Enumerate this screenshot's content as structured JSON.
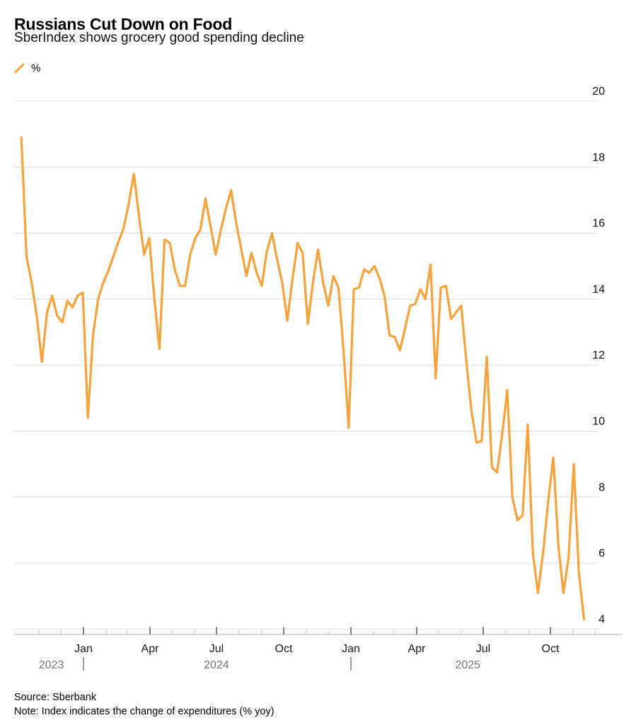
{
  "header": {
    "title": "Russians Cut Down on Food",
    "subtitle": "SberIndex shows grocery good spending decline"
  },
  "legend": {
    "label": "%"
  },
  "footer": {
    "source": "Source: Sberbank",
    "note": "Note: Index indicates the change of expenditures (% yoy)"
  },
  "colors": {
    "line": "#F8A23C",
    "grid": "#DADADA",
    "axis_line": "#BDBDBD",
    "tick_minor": "#C4C4C4",
    "tick_major": "#4A4A4A",
    "year_divider": "#6E6E6E",
    "year_text": "#767676",
    "month_text": "#1A1A1A",
    "y_label_text": "#111111"
  },
  "chart_data": {
    "type": "line",
    "title": "Russians Cut Down on Food",
    "subtitle": "SberIndex shows grocery good spending decline",
    "series_name": "%",
    "unit": "% yoy",
    "ylim": [
      4,
      20
    ],
    "y_ticks": [
      20,
      18,
      16,
      14,
      12,
      10,
      8,
      6,
      4
    ],
    "grid": true,
    "y_axis_side": "right",
    "legend_position": "top-left",
    "x_ticks": [
      {
        "date": "2023-11-01",
        "label": ""
      },
      {
        "date": "2023-12-01",
        "label": ""
      },
      {
        "date": "2024-01-01",
        "label": "Jan"
      },
      {
        "date": "2024-02-01",
        "label": ""
      },
      {
        "date": "2024-03-01",
        "label": ""
      },
      {
        "date": "2024-04-01",
        "label": "Apr"
      },
      {
        "date": "2024-05-01",
        "label": ""
      },
      {
        "date": "2024-06-01",
        "label": ""
      },
      {
        "date": "2024-07-01",
        "label": "Jul"
      },
      {
        "date": "2024-08-01",
        "label": ""
      },
      {
        "date": "2024-09-01",
        "label": ""
      },
      {
        "date": "2024-10-01",
        "label": "Oct"
      },
      {
        "date": "2024-11-01",
        "label": ""
      },
      {
        "date": "2024-12-01",
        "label": ""
      },
      {
        "date": "2025-01-01",
        "label": "Jan"
      },
      {
        "date": "2025-02-01",
        "label": ""
      },
      {
        "date": "2025-03-01",
        "label": ""
      },
      {
        "date": "2025-04-01",
        "label": "Apr"
      },
      {
        "date": "2025-05-01",
        "label": ""
      },
      {
        "date": "2025-06-01",
        "label": ""
      },
      {
        "date": "2025-07-01",
        "label": "Jul"
      },
      {
        "date": "2025-08-01",
        "label": ""
      },
      {
        "date": "2025-09-01",
        "label": ""
      },
      {
        "date": "2025-10-01",
        "label": "Oct"
      },
      {
        "date": "2025-11-01",
        "label": ""
      },
      {
        "date": "2025-12-01",
        "label": ""
      }
    ],
    "years": [
      {
        "label": "2023",
        "center_date": "2023-11-18"
      },
      {
        "label": "2024",
        "center_date": "2024-07-01"
      },
      {
        "label": "2025",
        "center_date": "2025-06-10"
      }
    ],
    "year_dividers": [
      "2024-01-01",
      "2025-01-01"
    ],
    "x": [
      "2023-10-08",
      "2023-10-15",
      "2023-10-22",
      "2023-10-29",
      "2023-11-05",
      "2023-11-12",
      "2023-11-19",
      "2023-11-26",
      "2023-12-03",
      "2023-12-10",
      "2023-12-17",
      "2023-12-24",
      "2023-12-31",
      "2024-01-07",
      "2024-01-14",
      "2024-01-21",
      "2024-01-28",
      "2024-02-04",
      "2024-02-11",
      "2024-02-18",
      "2024-02-25",
      "2024-03-03",
      "2024-03-10",
      "2024-03-17",
      "2024-03-24",
      "2024-03-31",
      "2024-04-07",
      "2024-04-14",
      "2024-04-21",
      "2024-04-28",
      "2024-05-05",
      "2024-05-12",
      "2024-05-19",
      "2024-05-26",
      "2024-06-02",
      "2024-06-09",
      "2024-06-16",
      "2024-06-23",
      "2024-06-30",
      "2024-07-07",
      "2024-07-14",
      "2024-07-21",
      "2024-07-28",
      "2024-08-04",
      "2024-08-11",
      "2024-08-18",
      "2024-08-25",
      "2024-09-01",
      "2024-09-08",
      "2024-09-15",
      "2024-09-22",
      "2024-09-29",
      "2024-10-06",
      "2024-10-13",
      "2024-10-20",
      "2024-10-27",
      "2024-11-03",
      "2024-11-10",
      "2024-11-17",
      "2024-11-24",
      "2024-12-01",
      "2024-12-08",
      "2024-12-15",
      "2024-12-22",
      "2024-12-29",
      "2025-01-05",
      "2025-01-12",
      "2025-01-19",
      "2025-01-26",
      "2025-02-02",
      "2025-02-09",
      "2025-02-16",
      "2025-02-23",
      "2025-03-02",
      "2025-03-09",
      "2025-03-16",
      "2025-03-23",
      "2025-03-30",
      "2025-04-06",
      "2025-04-13",
      "2025-04-20",
      "2025-04-27",
      "2025-05-04",
      "2025-05-11",
      "2025-05-18",
      "2025-05-25",
      "2025-06-01",
      "2025-06-08",
      "2025-06-15",
      "2025-06-22",
      "2025-06-29",
      "2025-07-06",
      "2025-07-13",
      "2025-07-20",
      "2025-07-27",
      "2025-08-03",
      "2025-08-10",
      "2025-08-17",
      "2025-08-24",
      "2025-08-31",
      "2025-09-07",
      "2025-09-14",
      "2025-09-21",
      "2025-09-28",
      "2025-10-05",
      "2025-10-12",
      "2025-10-19",
      "2025-10-26",
      "2025-11-02",
      "2025-11-09",
      "2025-11-16"
    ],
    "y": [
      18.9,
      15.3,
      14.5,
      13.5,
      12.1,
      13.6,
      14.1,
      13.5,
      13.3,
      13.95,
      13.75,
      14.1,
      14.2,
      10.4,
      12.9,
      14.0,
      14.5,
      14.85,
      15.3,
      15.75,
      16.15,
      16.9,
      17.8,
      16.5,
      15.35,
      15.85,
      14.0,
      12.5,
      15.8,
      15.7,
      14.9,
      14.4,
      14.4,
      15.35,
      15.85,
      16.1,
      17.05,
      16.2,
      15.35,
      16.1,
      16.75,
      17.3,
      16.3,
      15.5,
      14.7,
      15.4,
      14.8,
      14.4,
      15.45,
      16.0,
      15.2,
      14.5,
      13.35,
      14.6,
      15.7,
      15.4,
      13.25,
      14.5,
      15.5,
      14.5,
      13.8,
      14.7,
      14.35,
      12.4,
      10.1,
      14.3,
      14.35,
      14.9,
      14.8,
      15.0,
      14.65,
      14.1,
      12.9,
      12.85,
      12.45,
      13.1,
      13.8,
      13.85,
      14.3,
      14.0,
      15.05,
      11.6,
      14.35,
      14.4,
      13.4,
      13.6,
      13.8,
      12.1,
      10.6,
      9.65,
      9.7,
      12.25,
      8.9,
      8.75,
      9.9,
      11.25,
      8.0,
      7.3,
      7.45,
      10.2,
      6.3,
      5.1,
      6.3,
      7.9,
      9.2,
      6.5,
      5.1,
      6.2,
      9.0,
      5.7,
      4.3
    ]
  }
}
